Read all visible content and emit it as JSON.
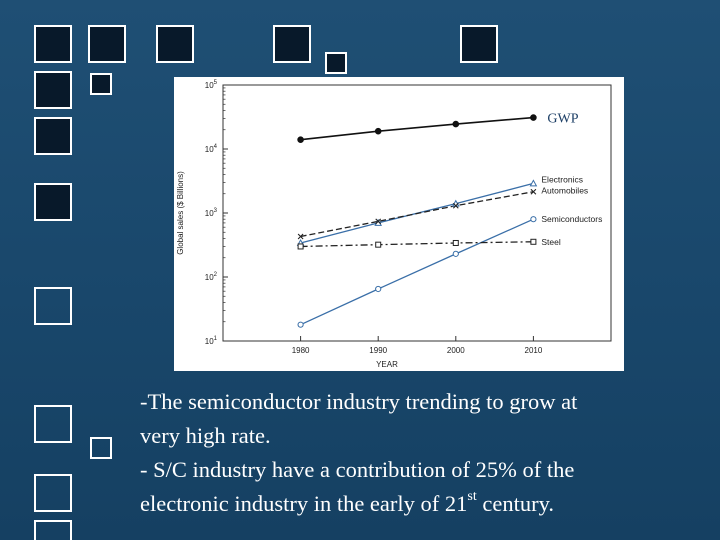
{
  "chart_data": {
    "type": "line",
    "xlabel": "YEAR",
    "ylabel": "Global sales ($ Billions)",
    "yscale": "log",
    "xlim": [
      1970,
      2020
    ],
    "ylim": [
      10,
      100000
    ],
    "x_ticks": [
      1980,
      1990,
      2000,
      2010
    ],
    "y_ticks": [
      {
        "value": 10,
        "base": "10",
        "exp": "1"
      },
      {
        "value": 100,
        "base": "10",
        "exp": "2"
      },
      {
        "value": 1000,
        "base": "10",
        "exp": "3"
      },
      {
        "value": 10000,
        "base": "10",
        "exp": "4"
      },
      {
        "value": 100000,
        "base": "10",
        "exp": "5"
      }
    ],
    "x": [
      1980,
      1990,
      2000,
      2010
    ],
    "series": [
      {
        "name": "GWP",
        "values": [
          14000,
          19000,
          24500,
          31000
        ],
        "style": "solid",
        "marker": "filled-circle",
        "color": "#111111"
      },
      {
        "name": "Electronics",
        "values": [
          340,
          700,
          1400,
          2900
        ],
        "style": "solid",
        "marker": "triangle",
        "color": "#3a6fa8"
      },
      {
        "name": "Automobiles",
        "values": [
          430,
          740,
          1300,
          2150
        ],
        "style": "dashed",
        "marker": "cross",
        "color": "#222222"
      },
      {
        "name": "Semiconductors",
        "values": [
          18,
          65,
          230,
          800
        ],
        "style": "solid",
        "marker": "open-circle",
        "color": "#3a6fa8"
      },
      {
        "name": "Steel",
        "values": [
          300,
          320,
          340,
          355
        ],
        "style": "dashdot",
        "marker": "open-square",
        "color": "#222222"
      }
    ],
    "legend_placement": "right"
  },
  "caption": {
    "line1": "-The semiconductor industry trending to grow at",
    "line2": "very high rate.",
    "line3": "- S/C industry have a contribution of 25% of the",
    "line4_pre": "electronic industry in the early of 21",
    "line4_sup": "st",
    "line4_post": " century."
  }
}
